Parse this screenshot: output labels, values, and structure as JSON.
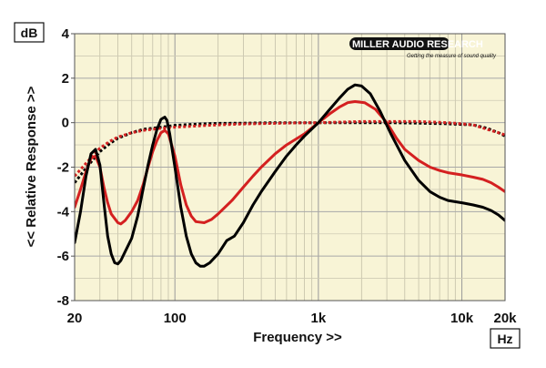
{
  "chart_data": {
    "type": "line",
    "title": "",
    "xlabel": "Frequency >>",
    "ylabel": "<< Relative Response >>",
    "y_unit": "dB",
    "x_unit": "Hz",
    "x_scale": "log",
    "xlim": [
      20,
      20000
    ],
    "ylim": [
      -8,
      4
    ],
    "x_ticks": [
      {
        "value": 20,
        "label": "20"
      },
      {
        "value": 100,
        "label": "100"
      },
      {
        "value": 1000,
        "label": "1k"
      },
      {
        "value": 10000,
        "label": "10k"
      },
      {
        "value": 20000,
        "label": "20k"
      }
    ],
    "y_ticks": [
      {
        "value": 4,
        "label": "4"
      },
      {
        "value": 2,
        "label": "2"
      },
      {
        "value": 0,
        "label": "0"
      },
      {
        "value": -2,
        "label": "-2"
      },
      {
        "value": -4,
        "label": "-4"
      },
      {
        "value": -6,
        "label": "-6"
      },
      {
        "value": -8,
        "label": "-8"
      }
    ],
    "grid": true,
    "legend": "none",
    "background_color": "#f8f4d6",
    "series": [
      {
        "color": "#000000",
        "style": "solid",
        "points": [
          [
            20,
            -5.4
          ],
          [
            22,
            -4
          ],
          [
            24,
            -2.4
          ],
          [
            26,
            -1.4
          ],
          [
            28,
            -1.2
          ],
          [
            30,
            -1.9
          ],
          [
            32,
            -3.6
          ],
          [
            34,
            -5.1
          ],
          [
            36,
            -5.9
          ],
          [
            38,
            -6.3
          ],
          [
            40,
            -6.35
          ],
          [
            42,
            -6.2
          ],
          [
            45,
            -5.8
          ],
          [
            50,
            -5.2
          ],
          [
            55,
            -4.2
          ],
          [
            60,
            -3
          ],
          [
            65,
            -1.9
          ],
          [
            70,
            -1
          ],
          [
            75,
            -0.3
          ],
          [
            80,
            0.15
          ],
          [
            85,
            0.25
          ],
          [
            88,
            0.1
          ],
          [
            92,
            -0.5
          ],
          [
            100,
            -2
          ],
          [
            110,
            -3.8
          ],
          [
            120,
            -5.1
          ],
          [
            130,
            -5.9
          ],
          [
            140,
            -6.3
          ],
          [
            150,
            -6.45
          ],
          [
            160,
            -6.45
          ],
          [
            175,
            -6.3
          ],
          [
            200,
            -5.9
          ],
          [
            230,
            -5.3
          ],
          [
            260,
            -5.1
          ],
          [
            300,
            -4.5
          ],
          [
            350,
            -3.7
          ],
          [
            400,
            -3.1
          ],
          [
            500,
            -2.2
          ],
          [
            600,
            -1.5
          ],
          [
            700,
            -1
          ],
          [
            800,
            -0.6
          ],
          [
            1000,
            0
          ],
          [
            1200,
            0.6
          ],
          [
            1400,
            1.1
          ],
          [
            1600,
            1.5
          ],
          [
            1800,
            1.7
          ],
          [
            2000,
            1.65
          ],
          [
            2300,
            1.3
          ],
          [
            2700,
            0.5
          ],
          [
            3200,
            -0.5
          ],
          [
            4000,
            -1.7
          ],
          [
            5000,
            -2.6
          ],
          [
            6000,
            -3.1
          ],
          [
            7000,
            -3.35
          ],
          [
            8000,
            -3.5
          ],
          [
            10000,
            -3.6
          ],
          [
            12000,
            -3.7
          ],
          [
            14000,
            -3.8
          ],
          [
            16000,
            -3.95
          ],
          [
            18000,
            -4.15
          ],
          [
            20000,
            -4.4
          ]
        ]
      },
      {
        "color": "#d42020",
        "style": "solid",
        "points": [
          [
            20,
            -3.8
          ],
          [
            22,
            -3
          ],
          [
            24,
            -2.2
          ],
          [
            26,
            -1.6
          ],
          [
            28,
            -1.5
          ],
          [
            30,
            -2
          ],
          [
            32,
            -2.9
          ],
          [
            34,
            -3.6
          ],
          [
            36,
            -4.1
          ],
          [
            40,
            -4.5
          ],
          [
            42,
            -4.55
          ],
          [
            45,
            -4.4
          ],
          [
            50,
            -4
          ],
          [
            55,
            -3.5
          ],
          [
            60,
            -2.8
          ],
          [
            65,
            -2
          ],
          [
            70,
            -1.3
          ],
          [
            75,
            -0.8
          ],
          [
            80,
            -0.45
          ],
          [
            85,
            -0.35
          ],
          [
            90,
            -0.5
          ],
          [
            100,
            -1.5
          ],
          [
            110,
            -2.8
          ],
          [
            120,
            -3.7
          ],
          [
            130,
            -4.2
          ],
          [
            140,
            -4.45
          ],
          [
            160,
            -4.5
          ],
          [
            180,
            -4.35
          ],
          [
            200,
            -4.1
          ],
          [
            250,
            -3.5
          ],
          [
            300,
            -2.9
          ],
          [
            350,
            -2.4
          ],
          [
            400,
            -2
          ],
          [
            500,
            -1.4
          ],
          [
            600,
            -1
          ],
          [
            800,
            -0.5
          ],
          [
            1000,
            0
          ],
          [
            1200,
            0.4
          ],
          [
            1400,
            0.7
          ],
          [
            1600,
            0.9
          ],
          [
            1800,
            0.95
          ],
          [
            2100,
            0.9
          ],
          [
            2500,
            0.6
          ],
          [
            3000,
            0
          ],
          [
            3500,
            -0.7
          ],
          [
            4000,
            -1.2
          ],
          [
            5000,
            -1.7
          ],
          [
            6000,
            -2
          ],
          [
            7000,
            -2.15
          ],
          [
            8000,
            -2.25
          ],
          [
            10000,
            -2.35
          ],
          [
            12000,
            -2.45
          ],
          [
            14000,
            -2.55
          ],
          [
            16000,
            -2.7
          ],
          [
            18000,
            -2.9
          ],
          [
            20000,
            -3.1
          ]
        ]
      },
      {
        "color": "#000000",
        "style": "dotted",
        "points": [
          [
            20,
            -2.7
          ],
          [
            25,
            -1.9
          ],
          [
            30,
            -1.3
          ],
          [
            35,
            -0.95
          ],
          [
            40,
            -0.7
          ],
          [
            50,
            -0.45
          ],
          [
            60,
            -0.3
          ],
          [
            80,
            -0.2
          ],
          [
            100,
            -0.12
          ],
          [
            150,
            -0.06
          ],
          [
            200,
            -0.03
          ],
          [
            300,
            -0.02
          ],
          [
            500,
            0
          ],
          [
            700,
            0
          ],
          [
            1000,
            0
          ],
          [
            2000,
            0
          ],
          [
            3000,
            0
          ],
          [
            5000,
            -0.02
          ],
          [
            8000,
            -0.05
          ],
          [
            10000,
            -0.08
          ],
          [
            12000,
            -0.1
          ],
          [
            15000,
            -0.25
          ],
          [
            18000,
            -0.45
          ],
          [
            20000,
            -0.6
          ]
        ]
      },
      {
        "color": "#d42020",
        "style": "dotted",
        "points": [
          [
            20,
            -2.4
          ],
          [
            25,
            -1.7
          ],
          [
            30,
            -1.15
          ],
          [
            35,
            -0.85
          ],
          [
            40,
            -0.65
          ],
          [
            50,
            -0.45
          ],
          [
            60,
            -0.35
          ],
          [
            80,
            -0.25
          ],
          [
            100,
            -0.2
          ],
          [
            150,
            -0.14
          ],
          [
            200,
            -0.1
          ],
          [
            300,
            -0.06
          ],
          [
            500,
            -0.03
          ],
          [
            700,
            -0.01
          ],
          [
            1000,
            0
          ],
          [
            2000,
            0.05
          ],
          [
            3000,
            0.05
          ],
          [
            5000,
            0.05
          ],
          [
            8000,
            0
          ],
          [
            10000,
            -0.05
          ],
          [
            12000,
            -0.1
          ],
          [
            15000,
            -0.3
          ],
          [
            18000,
            -0.45
          ],
          [
            20000,
            -0.55
          ]
        ]
      }
    ]
  },
  "logo": {
    "name": "MILLER AUDIO RESEARCH",
    "tagline": "Getting the measure of sound quality"
  }
}
